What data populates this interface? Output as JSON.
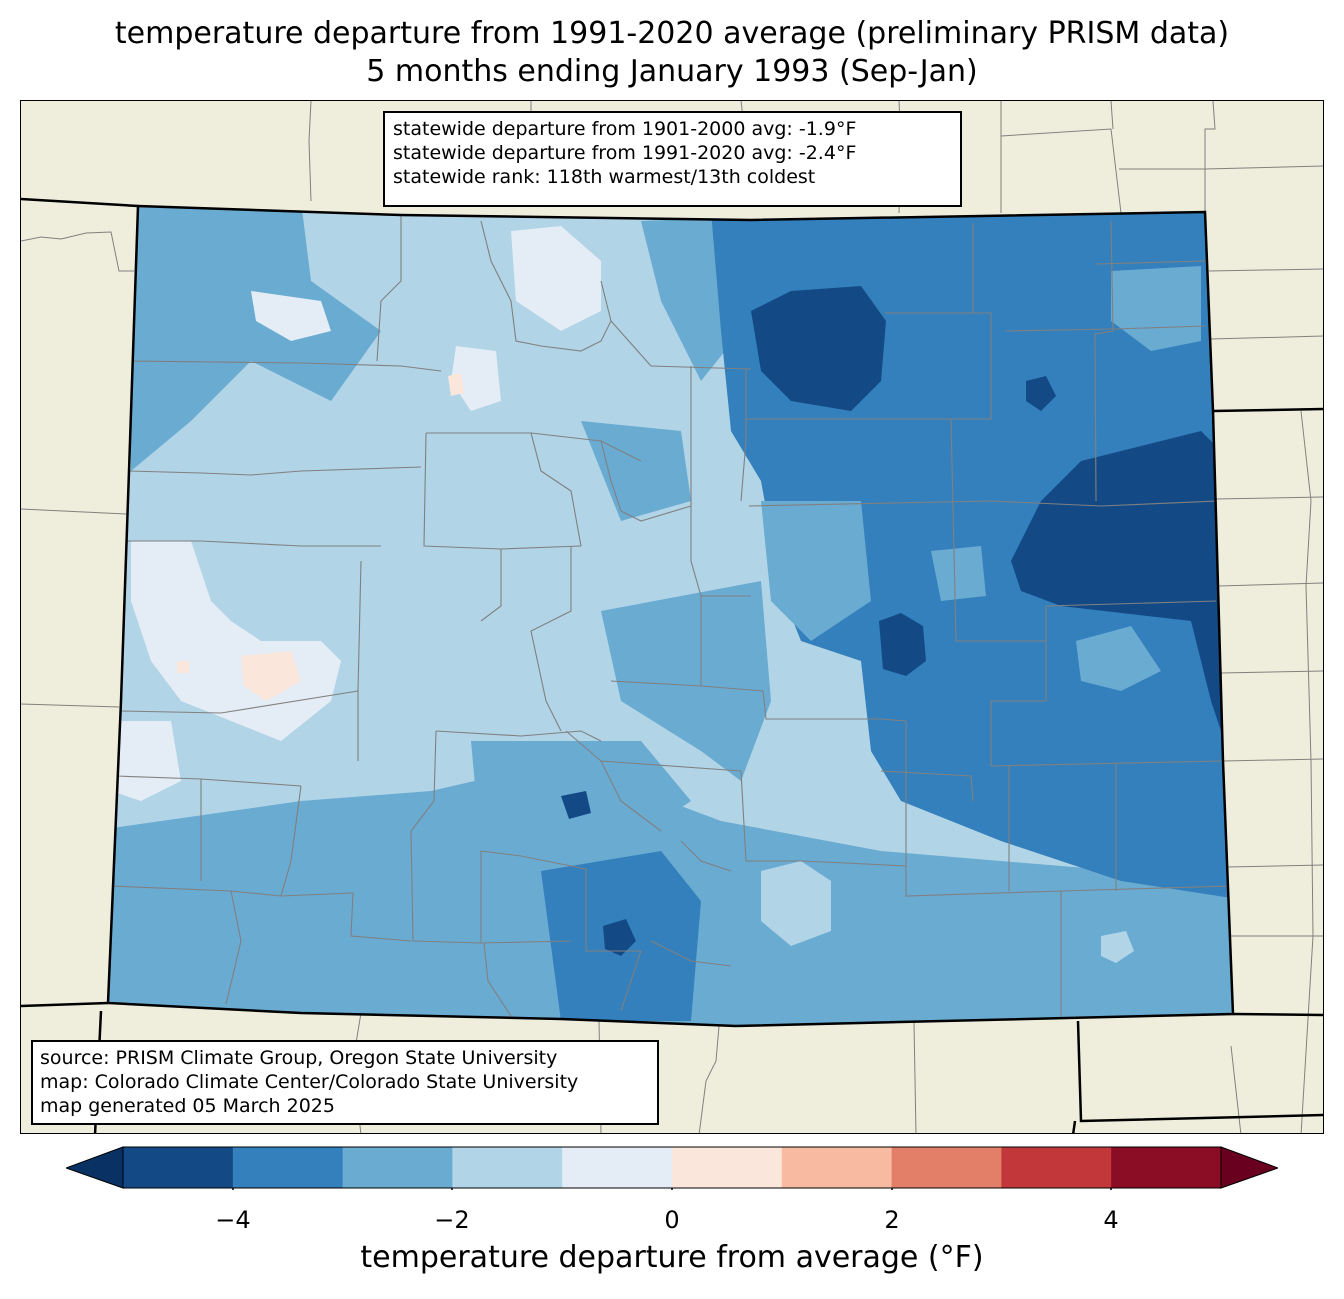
{
  "title_line1": "temperature departure from 1991-2020 average (preliminary PRISM data)",
  "title_line2": "5 months ending January 1993 (Sep-Jan)",
  "stats": [
    "statewide departure from 1901-2000 avg: -1.9°F",
    "statewide departure from 1991-2020 avg: -2.4°F",
    "statewide rank: 118th warmest/13th coldest"
  ],
  "credits": [
    "source: PRISM Climate Group, Oregon State University",
    "map: Colorado Climate Center/Colorado State University",
    "map generated 05 March 2025"
  ],
  "colorbar": {
    "label": "temperature departure from average (°F)",
    "ticks": [
      "−4",
      "−2",
      "0",
      "2",
      "4"
    ],
    "bins": [
      {
        "range": "-5 to -4",
        "color": "#134a86"
      },
      {
        "range": "-4 to -3",
        "color": "#3380bc"
      },
      {
        "range": "-3 to -2",
        "color": "#6aabd2"
      },
      {
        "range": "-2 to -1",
        "color": "#b1d4e7"
      },
      {
        "range": "-1 to 0",
        "color": "#e4edf5"
      },
      {
        "range": "0 to 1",
        "color": "#fbe6dc"
      },
      {
        "range": "1 to 2",
        "color": "#f8bba1"
      },
      {
        "range": "2 to 3",
        "color": "#e37f69"
      },
      {
        "range": "3 to 4",
        "color": "#c2383a"
      },
      {
        "range": "4 to 5",
        "color": "#8a0c25"
      }
    ],
    "under_color": "#093163",
    "over_color": "#69001f"
  },
  "map_colors": {
    "land": "#efeedc",
    "state_border": "#000000",
    "county_border": "#808080"
  }
}
